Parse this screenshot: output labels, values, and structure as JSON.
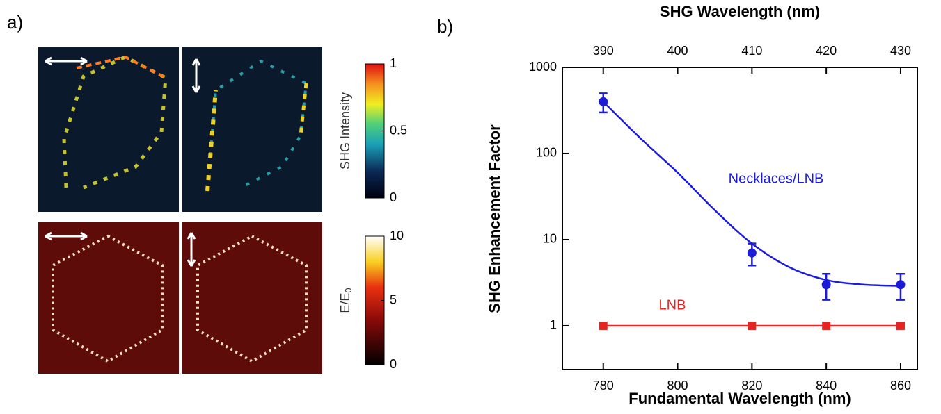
{
  "panel_a": {
    "label": "a)",
    "colorbars": [
      {
        "label": "SHG Intensity",
        "lim": [
          0,
          1
        ],
        "ticks": [
          0,
          0.5,
          1
        ]
      },
      {
        "label": "E/E",
        "label_sub": "0",
        "lim": [
          0,
          10
        ],
        "ticks": [
          0,
          5,
          10
        ]
      }
    ]
  },
  "chart_data": {
    "type": "line",
    "panel_label": "b)",
    "title": "SHG Wavelength (nm)",
    "x_label": "Fundamental Wavelength (nm)",
    "y_label": "SHG Enhancement Factor",
    "xlim": [
      769,
      864.5
    ],
    "xticks": [
      780,
      800,
      820,
      840,
      860
    ],
    "x2lim": [
      384.5,
      432.25
    ],
    "x2ticks": [
      390,
      400,
      410,
      420,
      430
    ],
    "ylim": [
      0.31,
      1000
    ],
    "yticks": [
      1,
      10,
      100,
      1000
    ],
    "log_y": true,
    "series": [
      {
        "name": "Necklaces/LNB",
        "color": "#1c1cd8",
        "marker": "circle",
        "x": [
          780,
          820,
          840,
          860
        ],
        "values": [
          400,
          7,
          3,
          3
        ],
        "errors": [
          100,
          2,
          1,
          1
        ]
      },
      {
        "name": "LNB",
        "color": "#e52421",
        "marker": "square",
        "x": [
          780,
          820,
          840,
          860
        ],
        "values": [
          1,
          1,
          1,
          1
        ]
      }
    ],
    "curve": {
      "color": "#1c1cd8",
      "x": [
        780,
        790,
        800,
        810,
        820,
        830,
        840,
        850,
        860
      ],
      "values": [
        400,
        150,
        60,
        22,
        9,
        4.8,
        3.4,
        3.0,
        2.9
      ]
    }
  }
}
